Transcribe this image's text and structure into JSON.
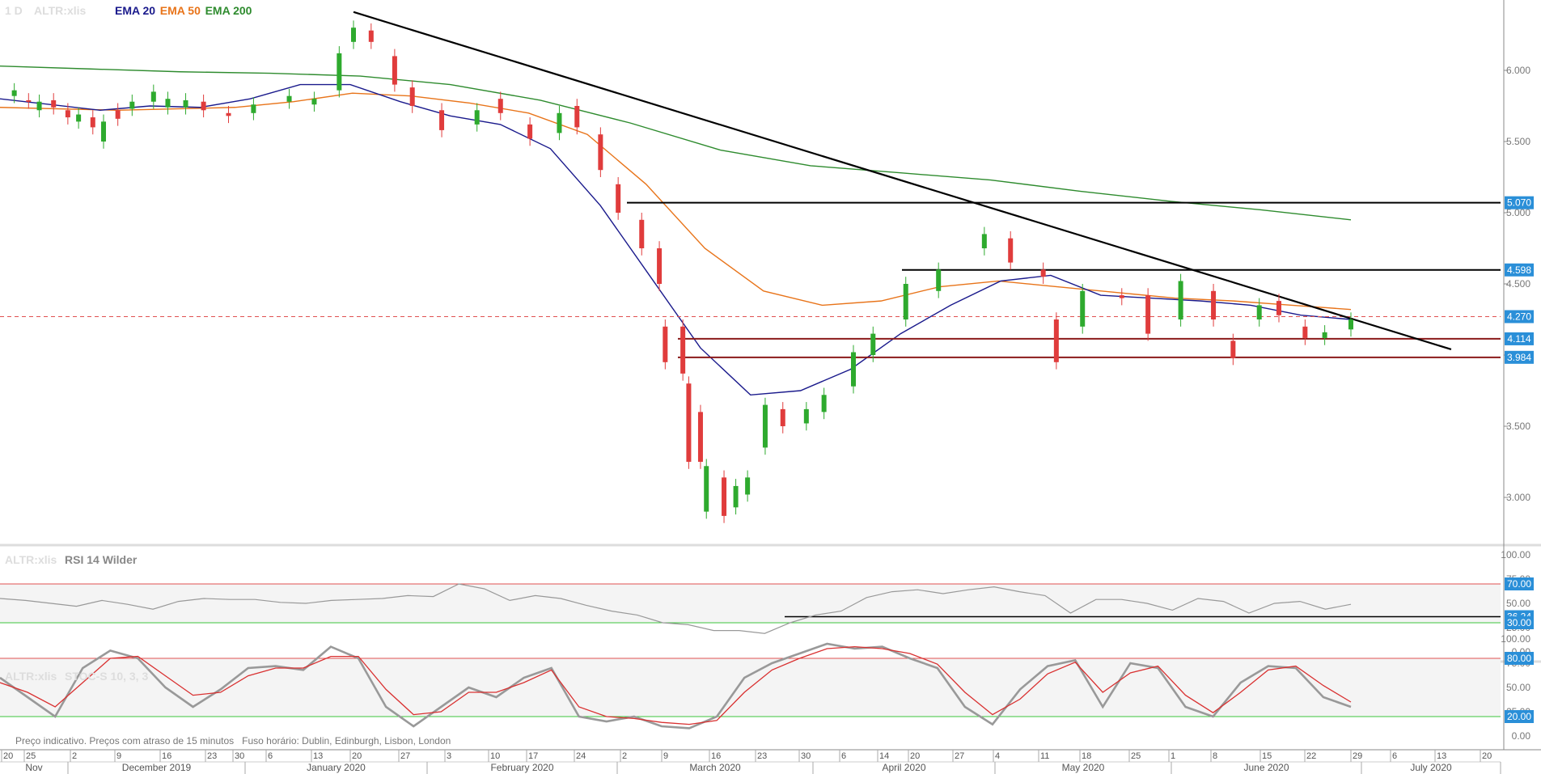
{
  "header": {
    "timeframe": "1 D",
    "symbol": "ALTR:xlis",
    "indicators": [
      {
        "label": "EMA 20",
        "color": "#1a1a8c"
      },
      {
        "label": "EMA 50",
        "color": "#e8741a"
      },
      {
        "label": "EMA 200",
        "color": "#2e8b2e"
      }
    ]
  },
  "chart_data": [
    {
      "type": "candlestick",
      "name": "price",
      "ylim": [
        2.7,
        6.4
      ],
      "y_ticks": [
        "6.000",
        "5.500",
        "5.000",
        "4.500",
        "4.000",
        "3.500",
        "3.000"
      ],
      "y_tick_values": [
        6.0,
        5.5,
        5.0,
        4.5,
        4.0,
        3.5,
        3.0
      ],
      "date_range": [
        "2019-10-17",
        "2020-06-29"
      ],
      "candles_approx": [
        {
          "date": "2019-10-17",
          "open": 5.82,
          "close": 5.86
        },
        {
          "date": "2019-10-21",
          "open": 5.79,
          "close": 5.78
        },
        {
          "date": "2019-10-24",
          "open": 5.72,
          "close": 5.78
        },
        {
          "date": "2019-10-28",
          "open": 5.79,
          "close": 5.74
        },
        {
          "date": "2019-11-01",
          "open": 5.72,
          "close": 5.67
        },
        {
          "date": "2019-11-04",
          "open": 5.64,
          "close": 5.69
        },
        {
          "date": "2019-11-08",
          "open": 5.67,
          "close": 5.6
        },
        {
          "date": "2019-11-11",
          "open": 5.5,
          "close": 5.64
        },
        {
          "date": "2019-11-15",
          "open": 5.72,
          "close": 5.66
        },
        {
          "date": "2019-11-19",
          "open": 5.73,
          "close": 5.78
        },
        {
          "date": "2019-11-25",
          "open": 5.78,
          "close": 5.85
        },
        {
          "date": "2019-11-29",
          "open": 5.74,
          "close": 5.8
        },
        {
          "date": "2019-12-04",
          "open": 5.74,
          "close": 5.79
        },
        {
          "date": "2019-12-09",
          "open": 5.78,
          "close": 5.72
        },
        {
          "date": "2019-12-16",
          "open": 5.7,
          "close": 5.68
        },
        {
          "date": "2019-12-23",
          "open": 5.7,
          "close": 5.76
        },
        {
          "date": "2020-01-02",
          "open": 5.78,
          "close": 5.82
        },
        {
          "date": "2020-01-09",
          "open": 5.76,
          "close": 5.8
        },
        {
          "date": "2020-01-16",
          "open": 5.86,
          "close": 6.12
        },
        {
          "date": "2020-01-20",
          "open": 6.2,
          "close": 6.3
        },
        {
          "date": "2020-01-23",
          "open": 6.28,
          "close": 6.2
        },
        {
          "date": "2020-01-27",
          "open": 6.1,
          "close": 5.9
        },
        {
          "date": "2020-01-30",
          "open": 5.88,
          "close": 5.75
        },
        {
          "date": "2020-02-04",
          "open": 5.72,
          "close": 5.58
        },
        {
          "date": "2020-02-10",
          "open": 5.62,
          "close": 5.72
        },
        {
          "date": "2020-02-14",
          "open": 5.8,
          "close": 5.7
        },
        {
          "date": "2020-02-19",
          "open": 5.62,
          "close": 5.52
        },
        {
          "date": "2020-02-24",
          "open": 5.56,
          "close": 5.7
        },
        {
          "date": "2020-02-27",
          "open": 5.75,
          "close": 5.6
        },
        {
          "date": "2020-03-02",
          "open": 5.55,
          "close": 5.3
        },
        {
          "date": "2020-03-05",
          "open": 5.2,
          "close": 5.0
        },
        {
          "date": "2020-03-09",
          "open": 4.95,
          "close": 4.75
        },
        {
          "date": "2020-03-12",
          "open": 4.75,
          "close": 4.5
        },
        {
          "date": "2020-03-13",
          "open": 4.2,
          "close": 3.95
        },
        {
          "date": "2020-03-16",
          "open": 4.2,
          "close": 3.87
        },
        {
          "date": "2020-03-17",
          "open": 3.8,
          "close": 3.25
        },
        {
          "date": "2020-03-19",
          "open": 3.6,
          "close": 3.25
        },
        {
          "date": "2020-03-20",
          "open": 2.9,
          "close": 3.22
        },
        {
          "date": "2020-03-23",
          "open": 3.14,
          "close": 2.87
        },
        {
          "date": "2020-03-25",
          "open": 2.93,
          "close": 3.08
        },
        {
          "date": "2020-03-27",
          "open": 3.02,
          "close": 3.14
        },
        {
          "date": "2020-03-30",
          "open": 3.35,
          "close": 3.65
        },
        {
          "date": "2020-04-02",
          "open": 3.62,
          "close": 3.5
        },
        {
          "date": "2020-04-06",
          "open": 3.52,
          "close": 3.62
        },
        {
          "date": "2020-04-09",
          "open": 3.6,
          "close": 3.72
        },
        {
          "date": "2020-04-14",
          "open": 3.78,
          "close": 4.02
        },
        {
          "date": "2020-04-17",
          "open": 4.0,
          "close": 4.15
        },
        {
          "date": "2020-04-22",
          "open": 4.25,
          "close": 4.5
        },
        {
          "date": "2020-04-27",
          "open": 4.45,
          "close": 4.6
        },
        {
          "date": "2020-05-04",
          "open": 4.75,
          "close": 4.85
        },
        {
          "date": "2020-05-08",
          "open": 4.82,
          "close": 4.65
        },
        {
          "date": "2020-05-13",
          "open": 4.6,
          "close": 4.55
        },
        {
          "date": "2020-05-15",
          "open": 4.25,
          "close": 3.95
        },
        {
          "date": "2020-05-19",
          "open": 4.2,
          "close": 4.45
        },
        {
          "date": "2020-05-25",
          "open": 4.42,
          "close": 4.4
        },
        {
          "date": "2020-05-29",
          "open": 4.42,
          "close": 4.15
        },
        {
          "date": "2020-06-03",
          "open": 4.25,
          "close": 4.52
        },
        {
          "date": "2020-06-08",
          "open": 4.45,
          "close": 4.25
        },
        {
          "date": "2020-06-11",
          "open": 4.1,
          "close": 3.98
        },
        {
          "date": "2020-06-15",
          "open": 4.25,
          "close": 4.35
        },
        {
          "date": "2020-06-18",
          "open": 4.38,
          "close": 4.28
        },
        {
          "date": "2020-06-22",
          "open": 4.2,
          "close": 4.12
        },
        {
          "date": "2020-06-25",
          "open": 4.12,
          "close": 4.16
        },
        {
          "date": "2020-06-29",
          "open": 4.18,
          "close": 4.25
        }
      ],
      "ema20_approx": [
        5.8,
        5.76,
        5.72,
        5.75,
        5.74,
        5.8,
        5.9,
        5.9,
        5.78,
        5.68,
        5.62,
        5.45,
        5.05,
        4.55,
        4.05,
        3.72,
        3.75,
        3.9,
        4.15,
        4.35,
        4.52,
        4.56,
        4.42,
        4.4,
        4.38,
        4.35,
        4.28,
        4.25
      ],
      "ema50_approx": [
        5.74,
        5.73,
        5.72,
        5.73,
        5.74,
        5.78,
        5.84,
        5.82,
        5.77,
        5.7,
        5.55,
        5.2,
        4.75,
        4.45,
        4.35,
        4.38,
        4.48,
        4.52,
        4.48,
        4.44,
        4.4,
        4.38,
        4.35,
        4.32
      ],
      "ema200_approx": [
        6.03,
        6.01,
        5.99,
        5.98,
        5.96,
        5.9,
        5.79,
        5.63,
        5.44,
        5.33,
        5.28,
        5.23,
        5.15,
        5.08,
        5.02,
        4.95
      ],
      "horizontal_levels": [
        {
          "label": "5.070",
          "value": 5.07,
          "color": "#000000"
        },
        {
          "label": "4.598",
          "value": 4.598,
          "color": "#000000"
        },
        {
          "label": "4.270",
          "value": 4.27,
          "color": "#e05050"
        },
        {
          "label": "4.114",
          "value": 4.114,
          "color": "#8b1a1a"
        },
        {
          "label": "3.984",
          "value": 3.984,
          "color": "#8b1a1a"
        }
      ],
      "trendline": {
        "from": {
          "date": "2020-01-20",
          "value": 6.41
        },
        "to": {
          "date": "2020-07-16",
          "value": 4.04
        }
      },
      "up_color": "#2eaa2e",
      "down_color": "#e03c3c"
    },
    {
      "type": "line",
      "title": "RSI 14 Wilder",
      "symbol": "ALTR:xlis",
      "ylim": [
        0,
        100
      ],
      "y_ticks": [
        "100.00",
        "75.00",
        "50.00",
        "25.00",
        "0.00"
      ],
      "y_tick_values": [
        100,
        75,
        50,
        25,
        0
      ],
      "overbought": {
        "label": "70.00",
        "value": 70
      },
      "oversold": {
        "label": "30.00",
        "value": 30
      },
      "marker": {
        "label": "36.24",
        "value": 36.24
      },
      "values_approx": [
        55,
        53,
        50,
        47,
        53,
        49,
        44,
        52,
        55,
        54,
        54,
        51,
        50,
        53,
        54,
        55,
        58,
        57,
        70,
        65,
        53,
        58,
        55,
        48,
        42,
        38,
        30,
        28,
        22,
        22,
        19,
        30,
        38,
        42,
        56,
        62,
        64,
        60,
        64,
        67,
        62,
        58,
        40,
        54,
        54,
        50,
        43,
        55,
        52,
        40,
        50,
        52,
        44,
        49
      ]
    },
    {
      "type": "line",
      "title": "STOC-S 10, 3, 3",
      "symbol": "ALTR:xlis",
      "ylim": [
        0,
        100
      ],
      "y_ticks": [
        "100.00",
        "75.00",
        "50.00",
        "25.00",
        "0.00"
      ],
      "y_tick_values": [
        100,
        75,
        50,
        25,
        0
      ],
      "overbought": {
        "label": "80.00",
        "value": 80
      },
      "oversold": {
        "label": "20.00",
        "value": 20
      },
      "k_values_approx": [
        60,
        40,
        20,
        70,
        88,
        80,
        50,
        30,
        48,
        70,
        72,
        68,
        92,
        80,
        30,
        10,
        30,
        50,
        40,
        60,
        70,
        20,
        15,
        20,
        10,
        8,
        20,
        60,
        75,
        85,
        95,
        90,
        92,
        80,
        70,
        30,
        12,
        48,
        72,
        78,
        30,
        75,
        70,
        30,
        20,
        55,
        72,
        70,
        40,
        30
      ],
      "d_values_approx": [
        55,
        45,
        30,
        55,
        80,
        82,
        62,
        42,
        45,
        62,
        70,
        70,
        82,
        82,
        48,
        22,
        25,
        45,
        45,
        55,
        68,
        30,
        20,
        18,
        14,
        12,
        16,
        45,
        68,
        80,
        90,
        92,
        90,
        85,
        74,
        45,
        22,
        38,
        64,
        76,
        45,
        65,
        72,
        42,
        24,
        45,
        68,
        72,
        52,
        35
      ]
    }
  ],
  "footer_note": "Preço indicativo. Preços com atraso de 15 minutos   Fuso horário: Dublin, Edinburgh, Lisbon, London",
  "x_axis": {
    "day_ticks": [
      "20",
      "25",
      "2",
      "9",
      "16",
      "23",
      "30",
      "6",
      "13",
      "20",
      "27",
      "3",
      "10",
      "17",
      "24",
      "2",
      "9",
      "16",
      "23",
      "30",
      "6",
      "14",
      "20",
      "27",
      "4",
      "11",
      "18",
      "25",
      "1",
      "8",
      "15",
      "22",
      "29",
      "6",
      "13",
      "20"
    ],
    "month_labels": [
      "Nov",
      "December 2019",
      "January 2020",
      "February 2020",
      "March 2020",
      "April 2020",
      "May 2020",
      "June 2020",
      "July 2020"
    ]
  }
}
